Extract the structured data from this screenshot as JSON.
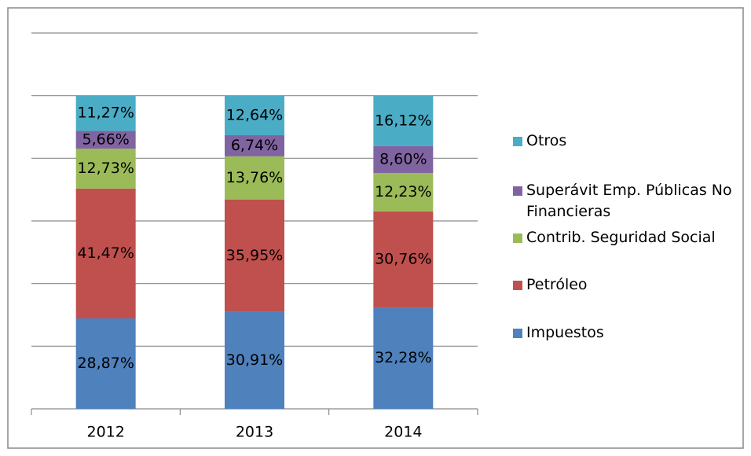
{
  "chart_data": {
    "type": "stacked_bar",
    "categories": [
      "2012",
      "2013",
      "2014"
    ],
    "ylim": [
      0,
      120
    ],
    "yticks": [
      0,
      20,
      40,
      60,
      80,
      100,
      120
    ],
    "grid": true,
    "series": [
      {
        "name": "Impuestos",
        "color": "#4f81bd",
        "values": [
          28.87,
          30.91,
          32.28
        ],
        "value_labels": [
          "28,87%",
          "30,91%",
          "32,28%"
        ]
      },
      {
        "name": "Petróleo",
        "color": "#c0504d",
        "values": [
          41.47,
          35.95,
          30.76
        ],
        "value_labels": [
          "41,47%",
          "35,95%",
          "30,76%"
        ]
      },
      {
        "name": "Contrib. Seguridad Social",
        "color": "#9bbb59",
        "values": [
          12.73,
          13.76,
          12.23
        ],
        "value_labels": [
          "12,73%",
          "13,76%",
          "12,23%"
        ]
      },
      {
        "name": "Superávit Emp. Públicas No Financieras",
        "color": "#8064a2",
        "values": [
          5.66,
          6.74,
          8.6
        ],
        "value_labels": [
          "5,66%",
          "6,74%",
          "8,60%"
        ]
      },
      {
        "name": "Otros",
        "color": "#4bacc6",
        "values": [
          11.27,
          12.64,
          16.12
        ],
        "value_labels": [
          "11,27%",
          "12,64%",
          "16,12%"
        ]
      }
    ],
    "legend": "right"
  }
}
